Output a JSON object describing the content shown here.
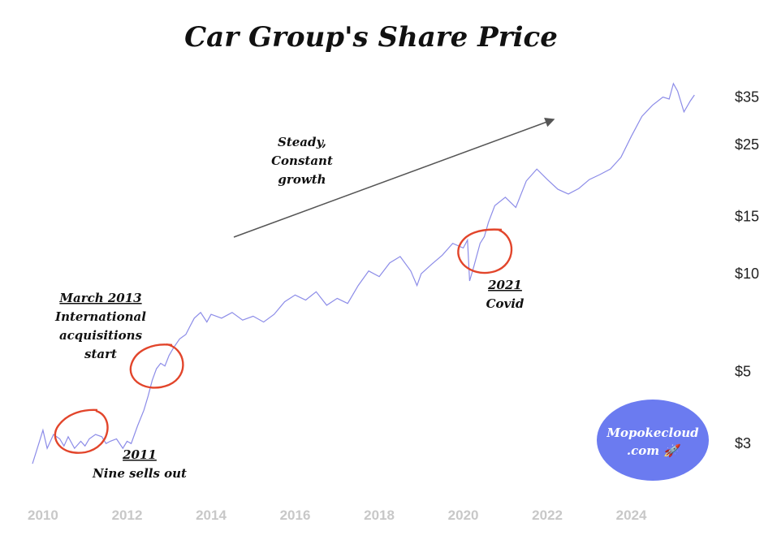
{
  "chart_data": {
    "type": "line",
    "title": "Car Group's Share Price",
    "xlabel": "",
    "ylabel": "",
    "y_scale": "log",
    "ylim": [
      2.4,
      41
    ],
    "xlim": [
      2009.75,
      2025.9
    ],
    "grid": false,
    "y_ticks": [
      {
        "value": 3,
        "label": "$3"
      },
      {
        "value": 5,
        "label": "$5"
      },
      {
        "value": 10,
        "label": "$10"
      },
      {
        "value": 15,
        "label": "$15"
      },
      {
        "value": 25,
        "label": "$25"
      },
      {
        "value": 35,
        "label": "$35"
      }
    ],
    "x_ticks": [
      "2010",
      "2012",
      "2014",
      "2016",
      "2018",
      "2020",
      "2022",
      "2024"
    ],
    "series": [
      {
        "color": "#8c8ce8",
        "x": [
          2009.75,
          2009.9,
          2010.0,
          2010.1,
          2010.25,
          2010.4,
          2010.5,
          2010.6,
          2010.75,
          2010.9,
          2011.0,
          2011.1,
          2011.25,
          2011.4,
          2011.5,
          2011.6,
          2011.75,
          2011.9,
          2012.0,
          2012.1,
          2012.25,
          2012.4,
          2012.5,
          2012.6,
          2012.7,
          2012.8,
          2012.9,
          2013.0,
          2013.1,
          2013.25,
          2013.4,
          2013.5,
          2013.6,
          2013.75,
          2013.9,
          2014.0,
          2014.25,
          2014.5,
          2014.75,
          2015.0,
          2015.25,
          2015.5,
          2015.75,
          2016.0,
          2016.25,
          2016.5,
          2016.75,
          2017.0,
          2017.25,
          2017.5,
          2017.75,
          2018.0,
          2018.25,
          2018.5,
          2018.75,
          2018.9,
          2019.0,
          2019.25,
          2019.5,
          2019.75,
          2020.0,
          2020.1,
          2020.15,
          2020.25,
          2020.4,
          2020.5,
          2020.6,
          2020.75,
          2021.0,
          2021.25,
          2021.5,
          2021.75,
          2022.0,
          2022.25,
          2022.5,
          2022.75,
          2023.0,
          2023.25,
          2023.5,
          2023.75,
          2024.0,
          2024.25,
          2024.5,
          2024.75,
          2024.9,
          2025.0,
          2025.1,
          2025.25,
          2025.4,
          2025.5
        ],
        "y": [
          2.6,
          3.0,
          3.3,
          2.9,
          3.2,
          3.1,
          2.95,
          3.15,
          2.9,
          3.05,
          2.95,
          3.1,
          3.2,
          3.15,
          3.0,
          3.05,
          3.1,
          2.9,
          3.05,
          3.0,
          3.4,
          3.8,
          4.2,
          4.7,
          5.1,
          5.3,
          5.2,
          5.6,
          5.9,
          6.3,
          6.5,
          6.9,
          7.3,
          7.6,
          7.1,
          7.5,
          7.3,
          7.6,
          7.2,
          7.4,
          7.1,
          7.5,
          8.2,
          8.6,
          8.3,
          8.8,
          8.0,
          8.4,
          8.1,
          9.2,
          10.2,
          9.8,
          10.8,
          11.3,
          10.2,
          9.2,
          10.0,
          10.7,
          11.4,
          12.4,
          12.0,
          12.7,
          9.5,
          10.5,
          12.4,
          13.0,
          14.4,
          16.2,
          17.2,
          16.0,
          19.3,
          21.0,
          19.5,
          18.2,
          17.6,
          18.3,
          19.5,
          20.2,
          21.0,
          22.8,
          26.5,
          30.5,
          33.0,
          35.0,
          34.5,
          38.5,
          36.5,
          31.5,
          34.0,
          35.5
        ]
      }
    ],
    "annotations": [
      {
        "year_label": "2011",
        "text": "Nine sells out",
        "x": 2011.0,
        "y": 3.0
      },
      {
        "year_label": "March 2013",
        "text_lines": [
          "International",
          "acquisitions",
          "start"
        ],
        "x": 2013.0,
        "y": 5.2
      },
      {
        "year_label": "2021",
        "text": "Covid",
        "x": 2020.4,
        "y": 11.0
      }
    ],
    "arrow_label": [
      "Steady,",
      "Constant",
      "growth"
    ],
    "brand": [
      "Mopokecloud",
      ".com 🚀"
    ]
  }
}
